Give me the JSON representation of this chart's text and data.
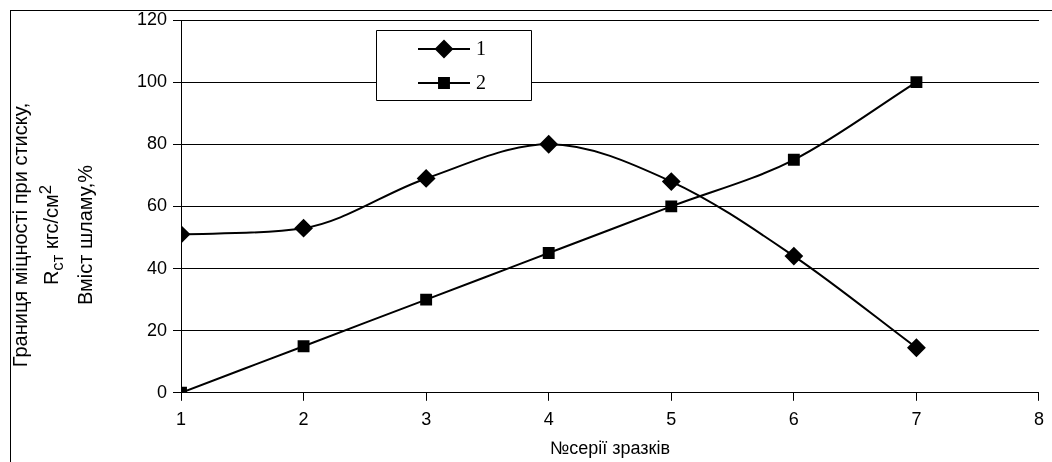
{
  "chart_data": {
    "type": "line",
    "xlabel": "№серії зразків",
    "ylabel": "Границя міцності при стиску,\nR$_{ст}$ кгс/см$^{2}$\nВміст шламу,%",
    "x": [
      1,
      2,
      3,
      4,
      5,
      6,
      7
    ],
    "series": [
      {
        "name": "1",
        "color": "#000000",
        "marker": "diamond",
        "values": [
          51,
          53,
          69,
          80,
          68,
          44,
          14.5
        ]
      },
      {
        "name": "2",
        "color": "#000000",
        "marker": "square",
        "values": [
          0,
          15,
          30,
          45,
          60,
          75,
          100
        ]
      }
    ],
    "xlim": [
      1,
      8
    ],
    "xticks": [
      1,
      2,
      3,
      4,
      5,
      6,
      7,
      8
    ],
    "ylim": [
      0,
      120
    ],
    "yticks": [
      0,
      20,
      40,
      60,
      80,
      100,
      120
    ],
    "grid": "y",
    "legend": "top",
    "line_style": "solid"
  }
}
